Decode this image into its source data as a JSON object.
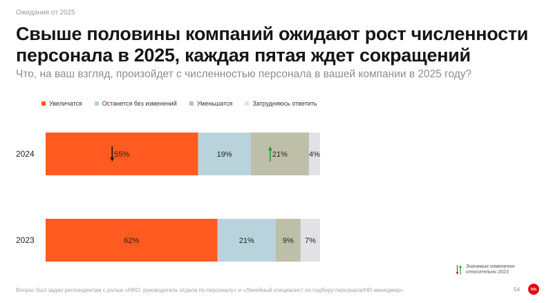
{
  "header": {
    "eyebrow": "Ожидания от 2025",
    "title": "Свыше половины компаний ожидают рост численности персонала в 2025, каждая пятая ждет сокращений",
    "subtitle": "Что, на ваш взгляд, произойдет с численностью персонала в вашей компании в 2025 году?"
  },
  "colors": {
    "increase": "#ff5a1f",
    "same": "#b9d3dc",
    "decrease": "#bebfa9",
    "unsure": "#e2e2e6",
    "arrow_down": "#1a1a1a",
    "arrow_up": "#1e9e3c",
    "note_arrow_down": "#d7261e"
  },
  "chart_data": {
    "type": "bar",
    "orientation": "horizontal",
    "stacked": true,
    "normalized": true,
    "categories": [
      "2024",
      "2023"
    ],
    "series": [
      {
        "name": "Увеличатся",
        "values": [
          55,
          62
        ],
        "labels": [
          "55%",
          "62%"
        ],
        "color": "#ff5a1f"
      },
      {
        "name": "Останется без изменений",
        "values": [
          19,
          21
        ],
        "labels": [
          "19%",
          "21%"
        ],
        "color": "#b9d3dc"
      },
      {
        "name": "Уменьшатся",
        "values": [
          21,
          9
        ],
        "labels": [
          "21%",
          "9%"
        ],
        "color": "#bebfa9"
      },
      {
        "name": "Затрудняюсь ответить",
        "values": [
          4,
          7
        ],
        "labels": [
          "4%",
          "7%"
        ],
        "color": "#e2e2e6"
      }
    ],
    "significant_changes": [
      {
        "category": "2024",
        "series": "Увеличатся",
        "direction": "down"
      },
      {
        "category": "2024",
        "series": "Уменьшатся",
        "direction": "up"
      }
    ],
    "legend_position": "top-left",
    "grid": false
  },
  "note": {
    "text": "Значимые изменения относительно 2023"
  },
  "footer": {
    "footnote": "Вопрос был задан респондентам с ролью «HRD, руководитель отдела по персоналу» и «Линейный специалист по подбору персонала/HR-менеджер»",
    "page": "54",
    "logo_text": "hh"
  }
}
